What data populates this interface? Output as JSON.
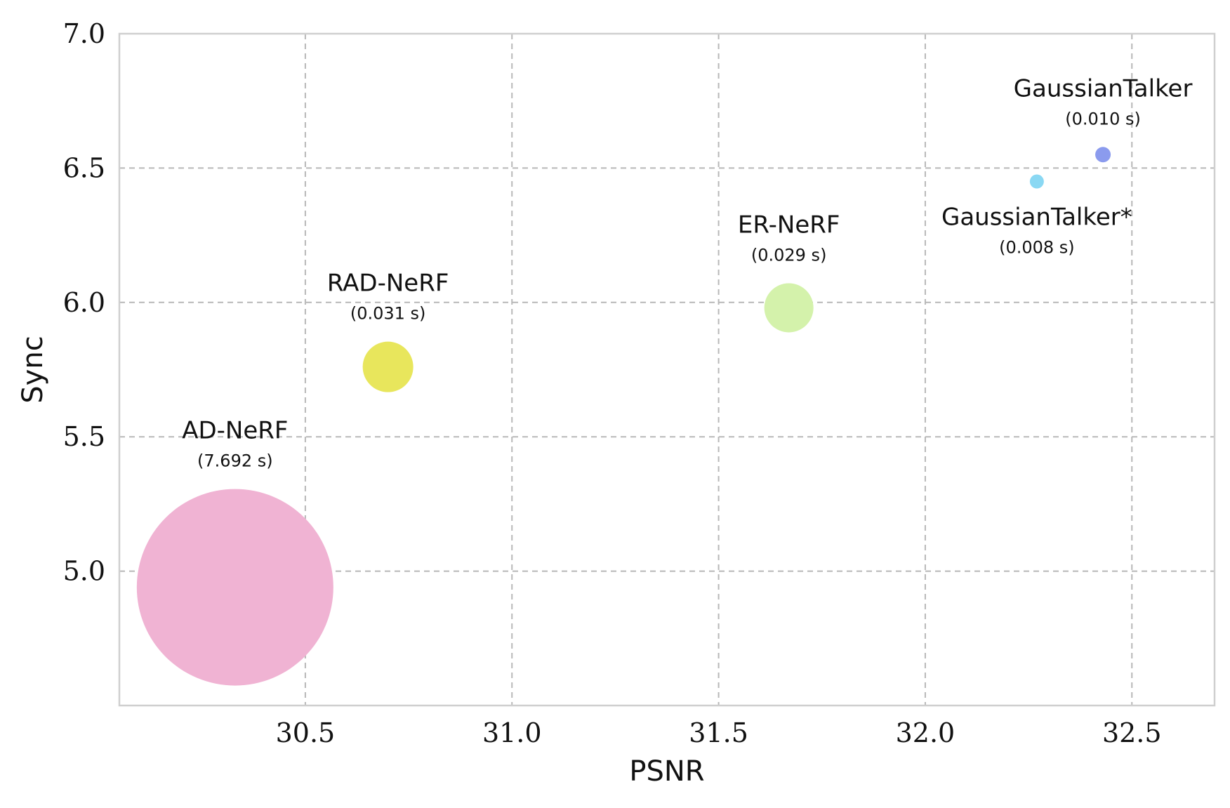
{
  "chart_data": {
    "type": "scatter",
    "title": "",
    "xlabel": "PSNR",
    "ylabel": "Sync",
    "xlim": [
      30.05,
      32.7
    ],
    "ylim": [
      4.5,
      7.0
    ],
    "xticks": [
      "30.5",
      "31.0",
      "31.5",
      "32.0",
      "32.5"
    ],
    "yticks": [
      "5.0",
      "5.5",
      "6.0",
      "6.5",
      "7.0"
    ],
    "grid": true,
    "bubble_size_encodes": "inference time (s)",
    "points": [
      {
        "name": "AD-NeRF",
        "time": "(7.692 s)",
        "x": 30.33,
        "y": 4.94,
        "color": "#f0b3d3"
      },
      {
        "name": "RAD-NeRF",
        "time": "(0.031 s)",
        "x": 30.7,
        "y": 5.76,
        "color": "#e8e65c"
      },
      {
        "name": "ER-NeRF",
        "time": "(0.029 s)",
        "x": 31.67,
        "y": 5.98,
        "color": "#d4f2ab"
      },
      {
        "name": "GaussianTalker*",
        "time": "(0.008 s)",
        "x": 32.27,
        "y": 6.45,
        "color": "#8ad8f3"
      },
      {
        "name": "GaussianTalker",
        "time": "(0.010 s)",
        "x": 32.43,
        "y": 6.55,
        "color": "#8b9bee"
      }
    ]
  }
}
